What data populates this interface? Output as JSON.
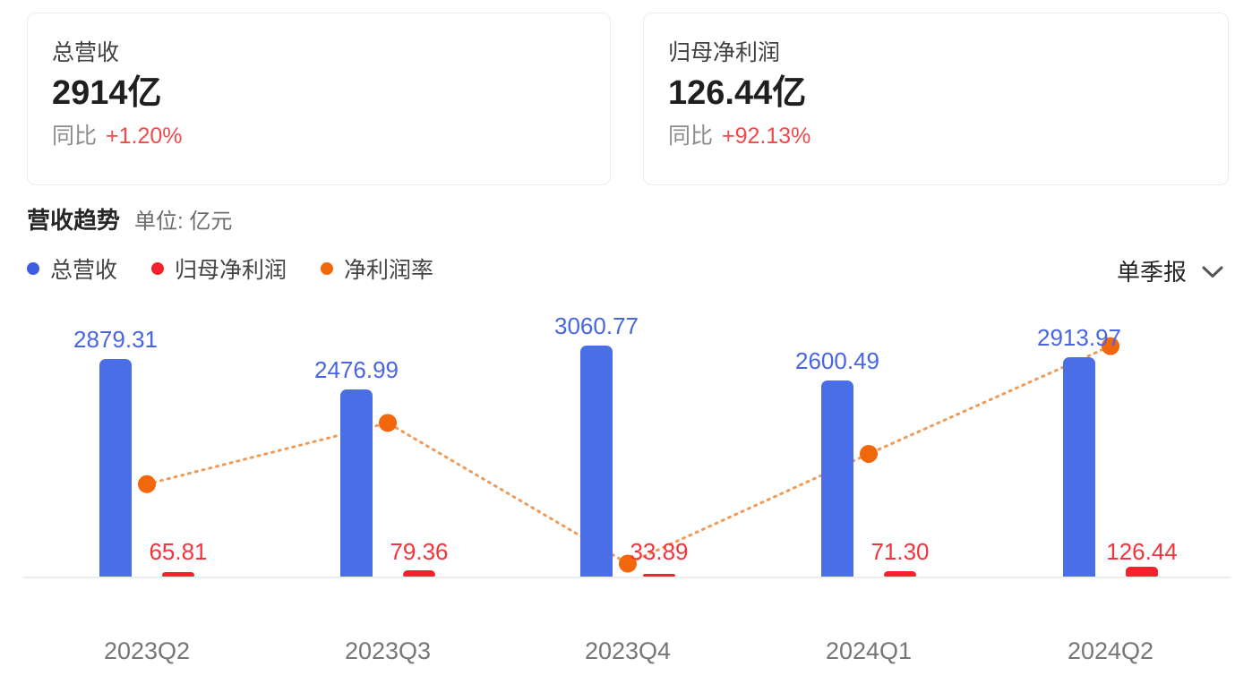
{
  "cards": [
    {
      "title": "总营收",
      "value": "2914亿",
      "yoy_label": "同比",
      "yoy_value": "+1.20%"
    },
    {
      "title": "归母净利润",
      "value": "126.44亿",
      "yoy_label": "同比",
      "yoy_value": "+92.13%"
    }
  ],
  "chart_header": {
    "title": "营收趋势",
    "unit": "单位: 亿元"
  },
  "period_selector": {
    "label": "单季报",
    "icon": "chevron-down"
  },
  "colors": {
    "revenue_bar": "#4a6ee8",
    "revenue_label": "#4766e0",
    "legend_revenue_dot": "#3d5ce0",
    "profit_bar": "#f5222d",
    "profit_label": "#f5333c",
    "margin_dot": "#f2670c",
    "margin_line": "#f09a57",
    "yoy_red": "#f4494c",
    "axis_line": "#ececec",
    "x_label_gray": "#767676"
  },
  "chart_data": {
    "type": "bar+line",
    "title": "营收趋势",
    "unit": "亿元",
    "grid": false,
    "legend_position": "top-left",
    "categories": [
      "2023Q2",
      "2023Q3",
      "2023Q4",
      "2024Q1",
      "2024Q2"
    ],
    "series": [
      {
        "name": "总营收",
        "type": "bar",
        "color": "#4a6ee8",
        "values": [
          2879.31,
          2476.99,
          3060.77,
          2600.49,
          2913.97
        ]
      },
      {
        "name": "归母净利润",
        "type": "bar",
        "color": "#f5222d",
        "values": [
          65.81,
          79.36,
          33.89,
          71.3,
          126.44
        ]
      },
      {
        "name": "净利润率",
        "type": "line",
        "color": "#f2670c",
        "unit": "%",
        "values": [
          2.29,
          3.2,
          1.11,
          2.74,
          4.34
        ]
      }
    ],
    "value_labels": {
      "总营收": [
        "2879.31",
        "2476.99",
        "3060.77",
        "2600.49",
        "2913.97"
      ],
      "归母净利润": [
        "65.81",
        "79.36",
        "33.89",
        "71.30",
        "126.44"
      ]
    }
  }
}
